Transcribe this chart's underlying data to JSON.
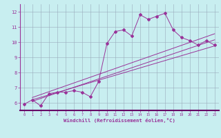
{
  "xlabel": "Windchill (Refroidissement éolien,°C)",
  "bg_color": "#c8eef0",
  "line_color": "#993399",
  "grid_color": "#99aabb",
  "xlim": [
    -0.5,
    23.5
  ],
  "ylim": [
    5.5,
    12.5
  ],
  "xticks": [
    0,
    1,
    2,
    3,
    4,
    5,
    6,
    7,
    8,
    9,
    10,
    11,
    12,
    13,
    14,
    15,
    16,
    17,
    18,
    19,
    20,
    21,
    22,
    23
  ],
  "yticks": [
    6,
    7,
    8,
    9,
    10,
    11,
    12
  ],
  "series1_x": [
    0,
    1,
    2,
    3,
    4,
    5,
    6,
    7,
    8,
    9,
    10,
    11,
    12,
    13,
    14,
    15,
    16,
    17,
    18,
    19,
    20,
    21,
    22,
    23
  ],
  "series1_y": [
    5.9,
    6.2,
    5.8,
    6.6,
    6.7,
    6.7,
    6.8,
    6.7,
    6.4,
    7.4,
    9.9,
    10.7,
    10.8,
    10.4,
    11.8,
    11.5,
    11.7,
    11.9,
    10.8,
    10.3,
    10.1,
    9.8,
    10.1,
    9.8
  ],
  "series2_x": [
    1,
    23
  ],
  "series2_y": [
    6.1,
    10.15
  ],
  "series3_x": [
    1,
    23
  ],
  "series3_y": [
    6.2,
    9.75
  ],
  "series4_x": [
    1,
    23
  ],
  "series4_y": [
    6.35,
    10.55
  ]
}
